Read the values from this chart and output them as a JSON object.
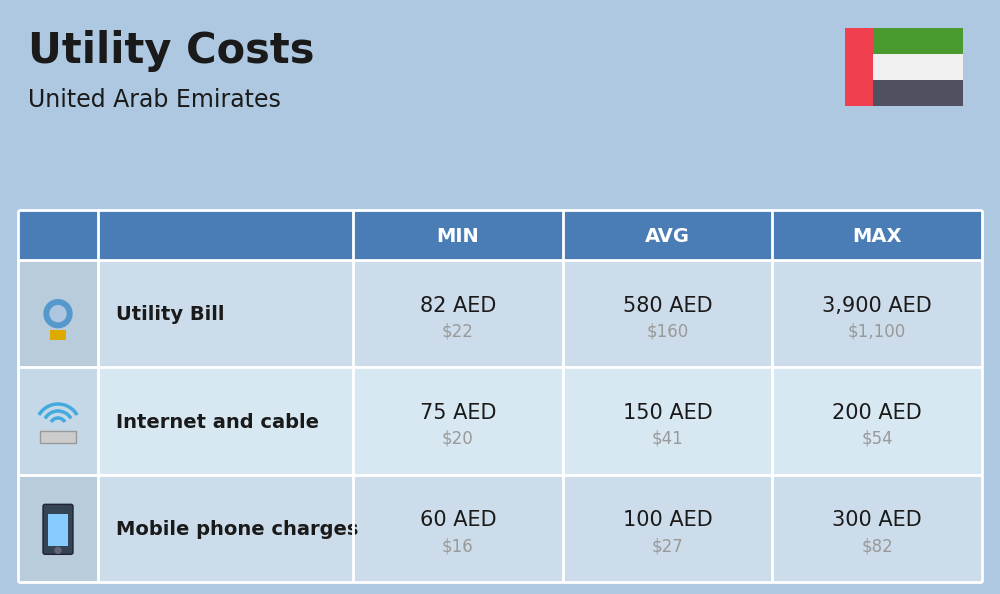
{
  "title": "Utility Costs",
  "subtitle": "United Arab Emirates",
  "background_color": "#adc8e0",
  "header_color": "#4a7db5",
  "header_text_color": "#ffffff",
  "row_colors_odd": "#ccdcea",
  "row_colors_even": "#d8e8f2",
  "icon_col_color_odd": "#b8ccdc",
  "icon_col_color_even": "#c4d8e8",
  "label_col_color_odd": "#ccdcea",
  "label_col_color_even": "#d8e8f2",
  "text_color": "#1a1a1a",
  "subvalue_color": "#999999",
  "columns": [
    "MIN",
    "AVG",
    "MAX"
  ],
  "rows": [
    {
      "label": "Utility Bill",
      "values_aed": [
        "82 AED",
        "580 AED",
        "3,900 AED"
      ],
      "values_usd": [
        "$22",
        "$160",
        "$1,100"
      ]
    },
    {
      "label": "Internet and cable",
      "values_aed": [
        "75 AED",
        "150 AED",
        "200 AED"
      ],
      "values_usd": [
        "$20",
        "$41",
        "$54"
      ]
    },
    {
      "label": "Mobile phone charges",
      "values_aed": [
        "60 AED",
        "100 AED",
        "300 AED"
      ],
      "values_usd": [
        "$16",
        "$27",
        "$82"
      ]
    }
  ],
  "flag": {
    "red": "#f04050",
    "green": "#4a9a30",
    "white": "#f0f0f0",
    "dark_gray": "#505060"
  }
}
